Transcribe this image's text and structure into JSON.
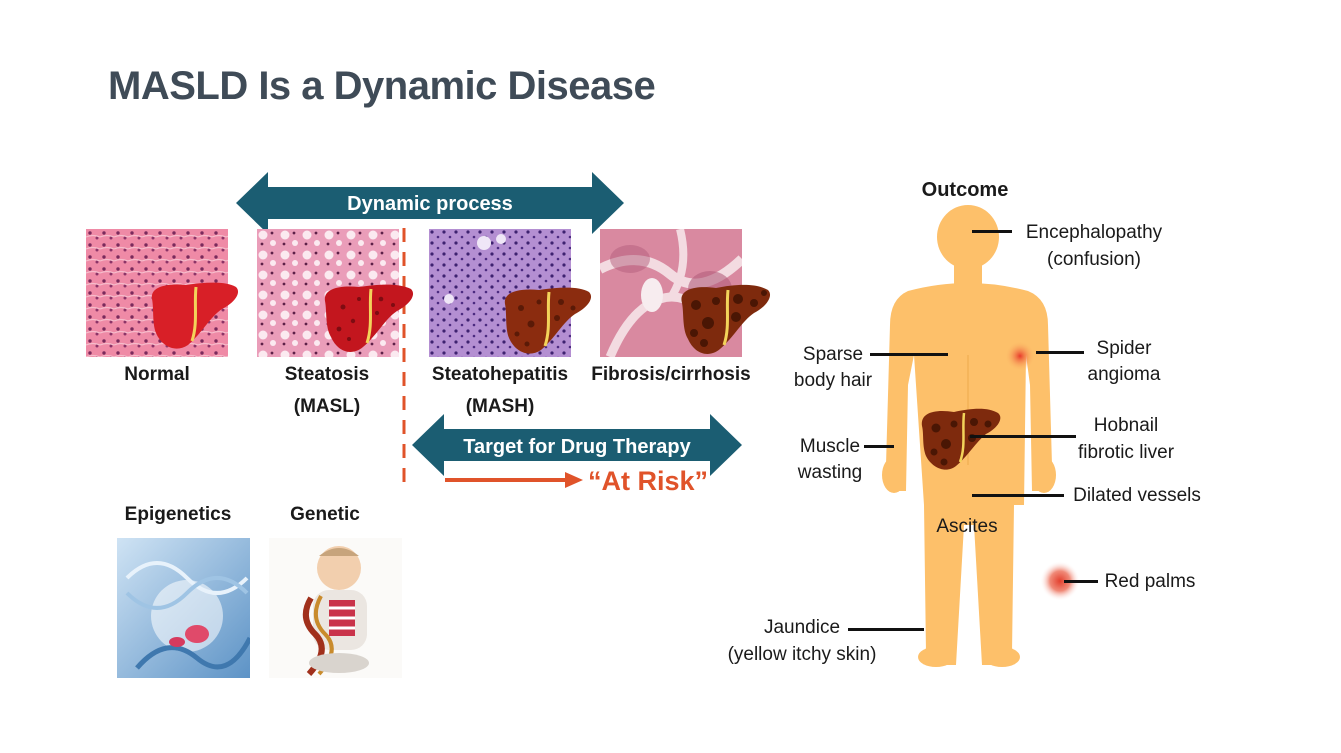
{
  "slide": {
    "title": "MASLD Is a Dynamic Disease"
  },
  "process": {
    "dynamic_label": "Dynamic process",
    "drug_target_label": "Target for Drug Therapy",
    "at_risk_label": "“At Risk”"
  },
  "stages": [
    {
      "line1": "Normal",
      "line2": ""
    },
    {
      "line1": "Steatosis",
      "line2": "(MASL)"
    },
    {
      "line1": "Steatohepatitis",
      "line2": "(MASH)"
    },
    {
      "line1": "Fibrosis/cirrhosis",
      "line2": ""
    }
  ],
  "factors": [
    {
      "label": "Epigenetics"
    },
    {
      "label": "Genetic"
    }
  ],
  "outcome": {
    "heading": "Outcome",
    "labels": {
      "encephalopathy_1": "Encephalopathy",
      "encephalopathy_2": "(confusion)",
      "sparse_1": "Sparse",
      "sparse_2": "body hair",
      "spider_1": "Spider",
      "spider_2": "angioma",
      "muscle_1": "Muscle",
      "muscle_2": "wasting",
      "hobnail_1": "Hobnail",
      "hobnail_2": "fibrotic liver",
      "dilated": "Dilated vessels",
      "ascites": "Ascites",
      "red_palms": "Red palms",
      "jaundice_1": "Jaundice",
      "jaundice_2": "(yellow itchy skin)"
    }
  },
  "colors": {
    "title": "#3f4b57",
    "arrow_teal": "#1b5d72",
    "risk_orange": "#e0532a",
    "body_skin": "#fdc06a",
    "liver_red": "#d81f27",
    "liver_brown": "#8b2c0f"
  }
}
